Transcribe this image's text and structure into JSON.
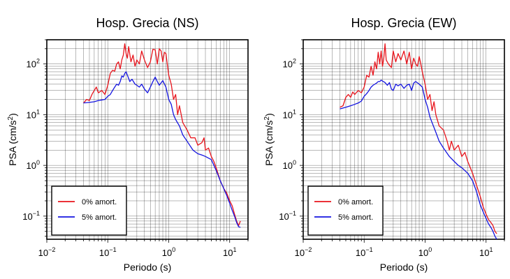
{
  "chart_data": [
    {
      "type": "line",
      "title": "Hosp. Grecia (NS)",
      "xlabel": "Periodo (s)",
      "ylabel_main": "PSA (cm/s",
      "ylabel_sup": "2",
      "ylabel_close": ")",
      "x_scale": "log",
      "y_scale": "log",
      "xlim": [
        0.01,
        20
      ],
      "ylim": [
        0.035,
        300
      ],
      "x_ticks": [
        {
          "value": 0.01,
          "base": "10",
          "exp": "−2"
        },
        {
          "value": 0.1,
          "base": "10",
          "exp": "−1"
        },
        {
          "value": 1,
          "base": "10",
          "exp": "0"
        },
        {
          "value": 10,
          "base": "10",
          "exp": "1"
        }
      ],
      "y_ticks": [
        {
          "value": 0.1,
          "base": "10",
          "exp": "−1"
        },
        {
          "value": 1,
          "base": "10",
          "exp": "0"
        },
        {
          "value": 10,
          "base": "10",
          "exp": "1"
        },
        {
          "value": 100,
          "base": "10",
          "exp": "2"
        }
      ],
      "grid": true,
      "legend_position": "bottom-left",
      "series": [
        {
          "name": "0% amort.",
          "color": "#e8141c",
          "points": [
            [
              0.04,
              17
            ],
            [
              0.045,
              20
            ],
            [
              0.05,
              19
            ],
            [
              0.055,
              25
            ],
            [
              0.06,
              30
            ],
            [
              0.065,
              35
            ],
            [
              0.07,
              27
            ],
            [
              0.08,
              30
            ],
            [
              0.09,
              25
            ],
            [
              0.1,
              38
            ],
            [
              0.11,
              65
            ],
            [
              0.12,
              75
            ],
            [
              0.13,
              72
            ],
            [
              0.14,
              100
            ],
            [
              0.15,
              110
            ],
            [
              0.16,
              80
            ],
            [
              0.17,
              120
            ],
            [
              0.18,
              150
            ],
            [
              0.19,
              250
            ],
            [
              0.2,
              160
            ],
            [
              0.21,
              130
            ],
            [
              0.22,
              220
            ],
            [
              0.24,
              110
            ],
            [
              0.26,
              150
            ],
            [
              0.28,
              90
            ],
            [
              0.3,
              120
            ],
            [
              0.33,
              100
            ],
            [
              0.36,
              180
            ],
            [
              0.4,
              120
            ],
            [
              0.45,
              85
            ],
            [
              0.5,
              110
            ],
            [
              0.55,
              195
            ],
            [
              0.6,
              190
            ],
            [
              0.65,
              100
            ],
            [
              0.7,
              200
            ],
            [
              0.75,
              180
            ],
            [
              0.8,
              110
            ],
            [
              0.85,
              170
            ],
            [
              0.9,
              160
            ],
            [
              1.0,
              60
            ],
            [
              1.1,
              40
            ],
            [
              1.2,
              20
            ],
            [
              1.3,
              25
            ],
            [
              1.4,
              10
            ],
            [
              1.5,
              15
            ],
            [
              1.7,
              7
            ],
            [
              2.0,
              5
            ],
            [
              2.3,
              3.5
            ],
            [
              2.7,
              3.5
            ],
            [
              3.0,
              2.5
            ],
            [
              3.5,
              2.8
            ],
            [
              3.8,
              3.5
            ],
            [
              4.0,
              2.0
            ],
            [
              4.5,
              2.2
            ],
            [
              5.0,
              1.5
            ],
            [
              5.5,
              1.2
            ],
            [
              6.0,
              0.9
            ],
            [
              7.0,
              0.5
            ],
            [
              8.0,
              0.35
            ],
            [
              9.0,
              0.28
            ],
            [
              10.0,
              0.2
            ],
            [
              11.0,
              0.16
            ],
            [
              12.0,
              0.11
            ],
            [
              13.0,
              0.08
            ],
            [
              14.0,
              0.065
            ],
            [
              15.0,
              0.08
            ]
          ]
        },
        {
          "name": "5% amort.",
          "color": "#1414e0",
          "points": [
            [
              0.04,
              17
            ],
            [
              0.05,
              17.5
            ],
            [
              0.06,
              18
            ],
            [
              0.07,
              19
            ],
            [
              0.08,
              19.5
            ],
            [
              0.09,
              20
            ],
            [
              0.1,
              23
            ],
            [
              0.11,
              25
            ],
            [
              0.12,
              30
            ],
            [
              0.13,
              35
            ],
            [
              0.14,
              40
            ],
            [
              0.15,
              38
            ],
            [
              0.16,
              45
            ],
            [
              0.17,
              58
            ],
            [
              0.18,
              55
            ],
            [
              0.19,
              65
            ],
            [
              0.2,
              70
            ],
            [
              0.21,
              60
            ],
            [
              0.23,
              45
            ],
            [
              0.25,
              50
            ],
            [
              0.28,
              40
            ],
            [
              0.3,
              38
            ],
            [
              0.33,
              35
            ],
            [
              0.36,
              40
            ],
            [
              0.4,
              32
            ],
            [
              0.45,
              27
            ],
            [
              0.5,
              35
            ],
            [
              0.55,
              45
            ],
            [
              0.6,
              55
            ],
            [
              0.65,
              45
            ],
            [
              0.7,
              38
            ],
            [
              0.8,
              47
            ],
            [
              0.9,
              35
            ],
            [
              1.0,
              20
            ],
            [
              1.1,
              16
            ],
            [
              1.2,
              10
            ],
            [
              1.3,
              8
            ],
            [
              1.5,
              6
            ],
            [
              1.7,
              4
            ],
            [
              2.0,
              3
            ],
            [
              2.5,
              2.0
            ],
            [
              3.0,
              1.7
            ],
            [
              3.5,
              1.6
            ],
            [
              4.0,
              1.5
            ],
            [
              5.0,
              1.3
            ],
            [
              6.0,
              0.8
            ],
            [
              7.0,
              0.5
            ],
            [
              8.0,
              0.35
            ],
            [
              9.0,
              0.25
            ],
            [
              10.0,
              0.18
            ],
            [
              11.0,
              0.13
            ],
            [
              12.0,
              0.1
            ],
            [
              13.0,
              0.075
            ],
            [
              14.0,
              0.062
            ],
            [
              15.0,
              0.06
            ]
          ]
        }
      ]
    },
    {
      "type": "line",
      "title": "Hosp. Grecia (EW)",
      "xlabel": "Periodo (s)",
      "ylabel_main": "PSA (cm/s",
      "ylabel_sup": "2",
      "ylabel_close": ")",
      "x_scale": "log",
      "y_scale": "log",
      "xlim": [
        0.01,
        20
      ],
      "ylim": [
        0.035,
        300
      ],
      "x_ticks": [
        {
          "value": 0.01,
          "base": "10",
          "exp": "−2"
        },
        {
          "value": 0.1,
          "base": "10",
          "exp": "−1"
        },
        {
          "value": 1,
          "base": "10",
          "exp": "0"
        },
        {
          "value": 10,
          "base": "10",
          "exp": "1"
        }
      ],
      "y_ticks": [
        {
          "value": 0.1,
          "base": "10",
          "exp": "−1"
        },
        {
          "value": 1,
          "base": "10",
          "exp": "0"
        },
        {
          "value": 10,
          "base": "10",
          "exp": "1"
        },
        {
          "value": 100,
          "base": "10",
          "exp": "2"
        }
      ],
      "grid": true,
      "legend_position": "bottom-left",
      "series": [
        {
          "name": "0% amort.",
          "color": "#e8141c",
          "points": [
            [
              0.04,
              14
            ],
            [
              0.045,
              15
            ],
            [
              0.05,
              22
            ],
            [
              0.055,
              25
            ],
            [
              0.06,
              22
            ],
            [
              0.065,
              28
            ],
            [
              0.07,
              25
            ],
            [
              0.08,
              30
            ],
            [
              0.09,
              27
            ],
            [
              0.1,
              35
            ],
            [
              0.11,
              60
            ],
            [
              0.12,
              55
            ],
            [
              0.13,
              90
            ],
            [
              0.14,
              60
            ],
            [
              0.15,
              110
            ],
            [
              0.16,
              80
            ],
            [
              0.17,
              170
            ],
            [
              0.18,
              100
            ],
            [
              0.19,
              180
            ],
            [
              0.2,
              90
            ],
            [
              0.21,
              130
            ],
            [
              0.22,
              250
            ],
            [
              0.23,
              120
            ],
            [
              0.25,
              100
            ],
            [
              0.28,
              85
            ],
            [
              0.3,
              180
            ],
            [
              0.33,
              110
            ],
            [
              0.36,
              160
            ],
            [
              0.4,
              120
            ],
            [
              0.45,
              180
            ],
            [
              0.5,
              100
            ],
            [
              0.55,
              170
            ],
            [
              0.6,
              80
            ],
            [
              0.65,
              130
            ],
            [
              0.7,
              100
            ],
            [
              0.75,
              90
            ],
            [
              0.8,
              140
            ],
            [
              0.85,
              100
            ],
            [
              0.9,
              70
            ],
            [
              1.0,
              40
            ],
            [
              1.1,
              20
            ],
            [
              1.2,
              25
            ],
            [
              1.3,
              12
            ],
            [
              1.4,
              18
            ],
            [
              1.5,
              10
            ],
            [
              1.7,
              6
            ],
            [
              2.0,
              5
            ],
            [
              2.3,
              3
            ],
            [
              2.5,
              2.0
            ],
            [
              2.7,
              3
            ],
            [
              3.0,
              2.0
            ],
            [
              3.5,
              2.5
            ],
            [
              4.0,
              1.5
            ],
            [
              4.5,
              1.8
            ],
            [
              5.0,
              1.2
            ],
            [
              6.0,
              0.7
            ],
            [
              7.0,
              0.4
            ],
            [
              8.0,
              0.25
            ],
            [
              9.0,
              0.15
            ],
            [
              10.0,
              0.11
            ],
            [
              11.0,
              0.085
            ],
            [
              12.0,
              0.075
            ],
            [
              13.0,
              0.065
            ],
            [
              14.0,
              0.05
            ],
            [
              15.0,
              0.045
            ]
          ]
        },
        {
          "name": "5% amort.",
          "color": "#1414e0",
          "points": [
            [
              0.04,
              13
            ],
            [
              0.05,
              14
            ],
            [
              0.06,
              15
            ],
            [
              0.07,
              16
            ],
            [
              0.08,
              17
            ],
            [
              0.09,
              18.5
            ],
            [
              0.1,
              23
            ],
            [
              0.11,
              26
            ],
            [
              0.12,
              30
            ],
            [
              0.13,
              35
            ],
            [
              0.14,
              38
            ],
            [
              0.15,
              40
            ],
            [
              0.16,
              42
            ],
            [
              0.17,
              45
            ],
            [
              0.18,
              45
            ],
            [
              0.19,
              48
            ],
            [
              0.2,
              46
            ],
            [
              0.22,
              43
            ],
            [
              0.24,
              38
            ],
            [
              0.26,
              43
            ],
            [
              0.28,
              32
            ],
            [
              0.3,
              30
            ],
            [
              0.33,
              40
            ],
            [
              0.36,
              37
            ],
            [
              0.4,
              40
            ],
            [
              0.45,
              33
            ],
            [
              0.5,
              38
            ],
            [
              0.55,
              40
            ],
            [
              0.6,
              30
            ],
            [
              0.65,
              42
            ],
            [
              0.7,
              45
            ],
            [
              0.8,
              40
            ],
            [
              0.9,
              35
            ],
            [
              1.0,
              20
            ],
            [
              1.1,
              14
            ],
            [
              1.2,
              9
            ],
            [
              1.3,
              7
            ],
            [
              1.5,
              4.5
            ],
            [
              1.7,
              3.0
            ],
            [
              2.0,
              2.2
            ],
            [
              2.5,
              1.5
            ],
            [
              3.0,
              1.2
            ],
            [
              3.5,
              1.0
            ],
            [
              4.0,
              0.9
            ],
            [
              5.0,
              0.7
            ],
            [
              6.0,
              0.5
            ],
            [
              7.0,
              0.3
            ],
            [
              8.0,
              0.17
            ],
            [
              9.0,
              0.12
            ],
            [
              10.0,
              0.09
            ],
            [
              11.0,
              0.07
            ],
            [
              12.0,
              0.06
            ],
            [
              13.0,
              0.05
            ],
            [
              14.0,
              0.04
            ],
            [
              15.0,
              0.035
            ]
          ]
        }
      ]
    }
  ]
}
